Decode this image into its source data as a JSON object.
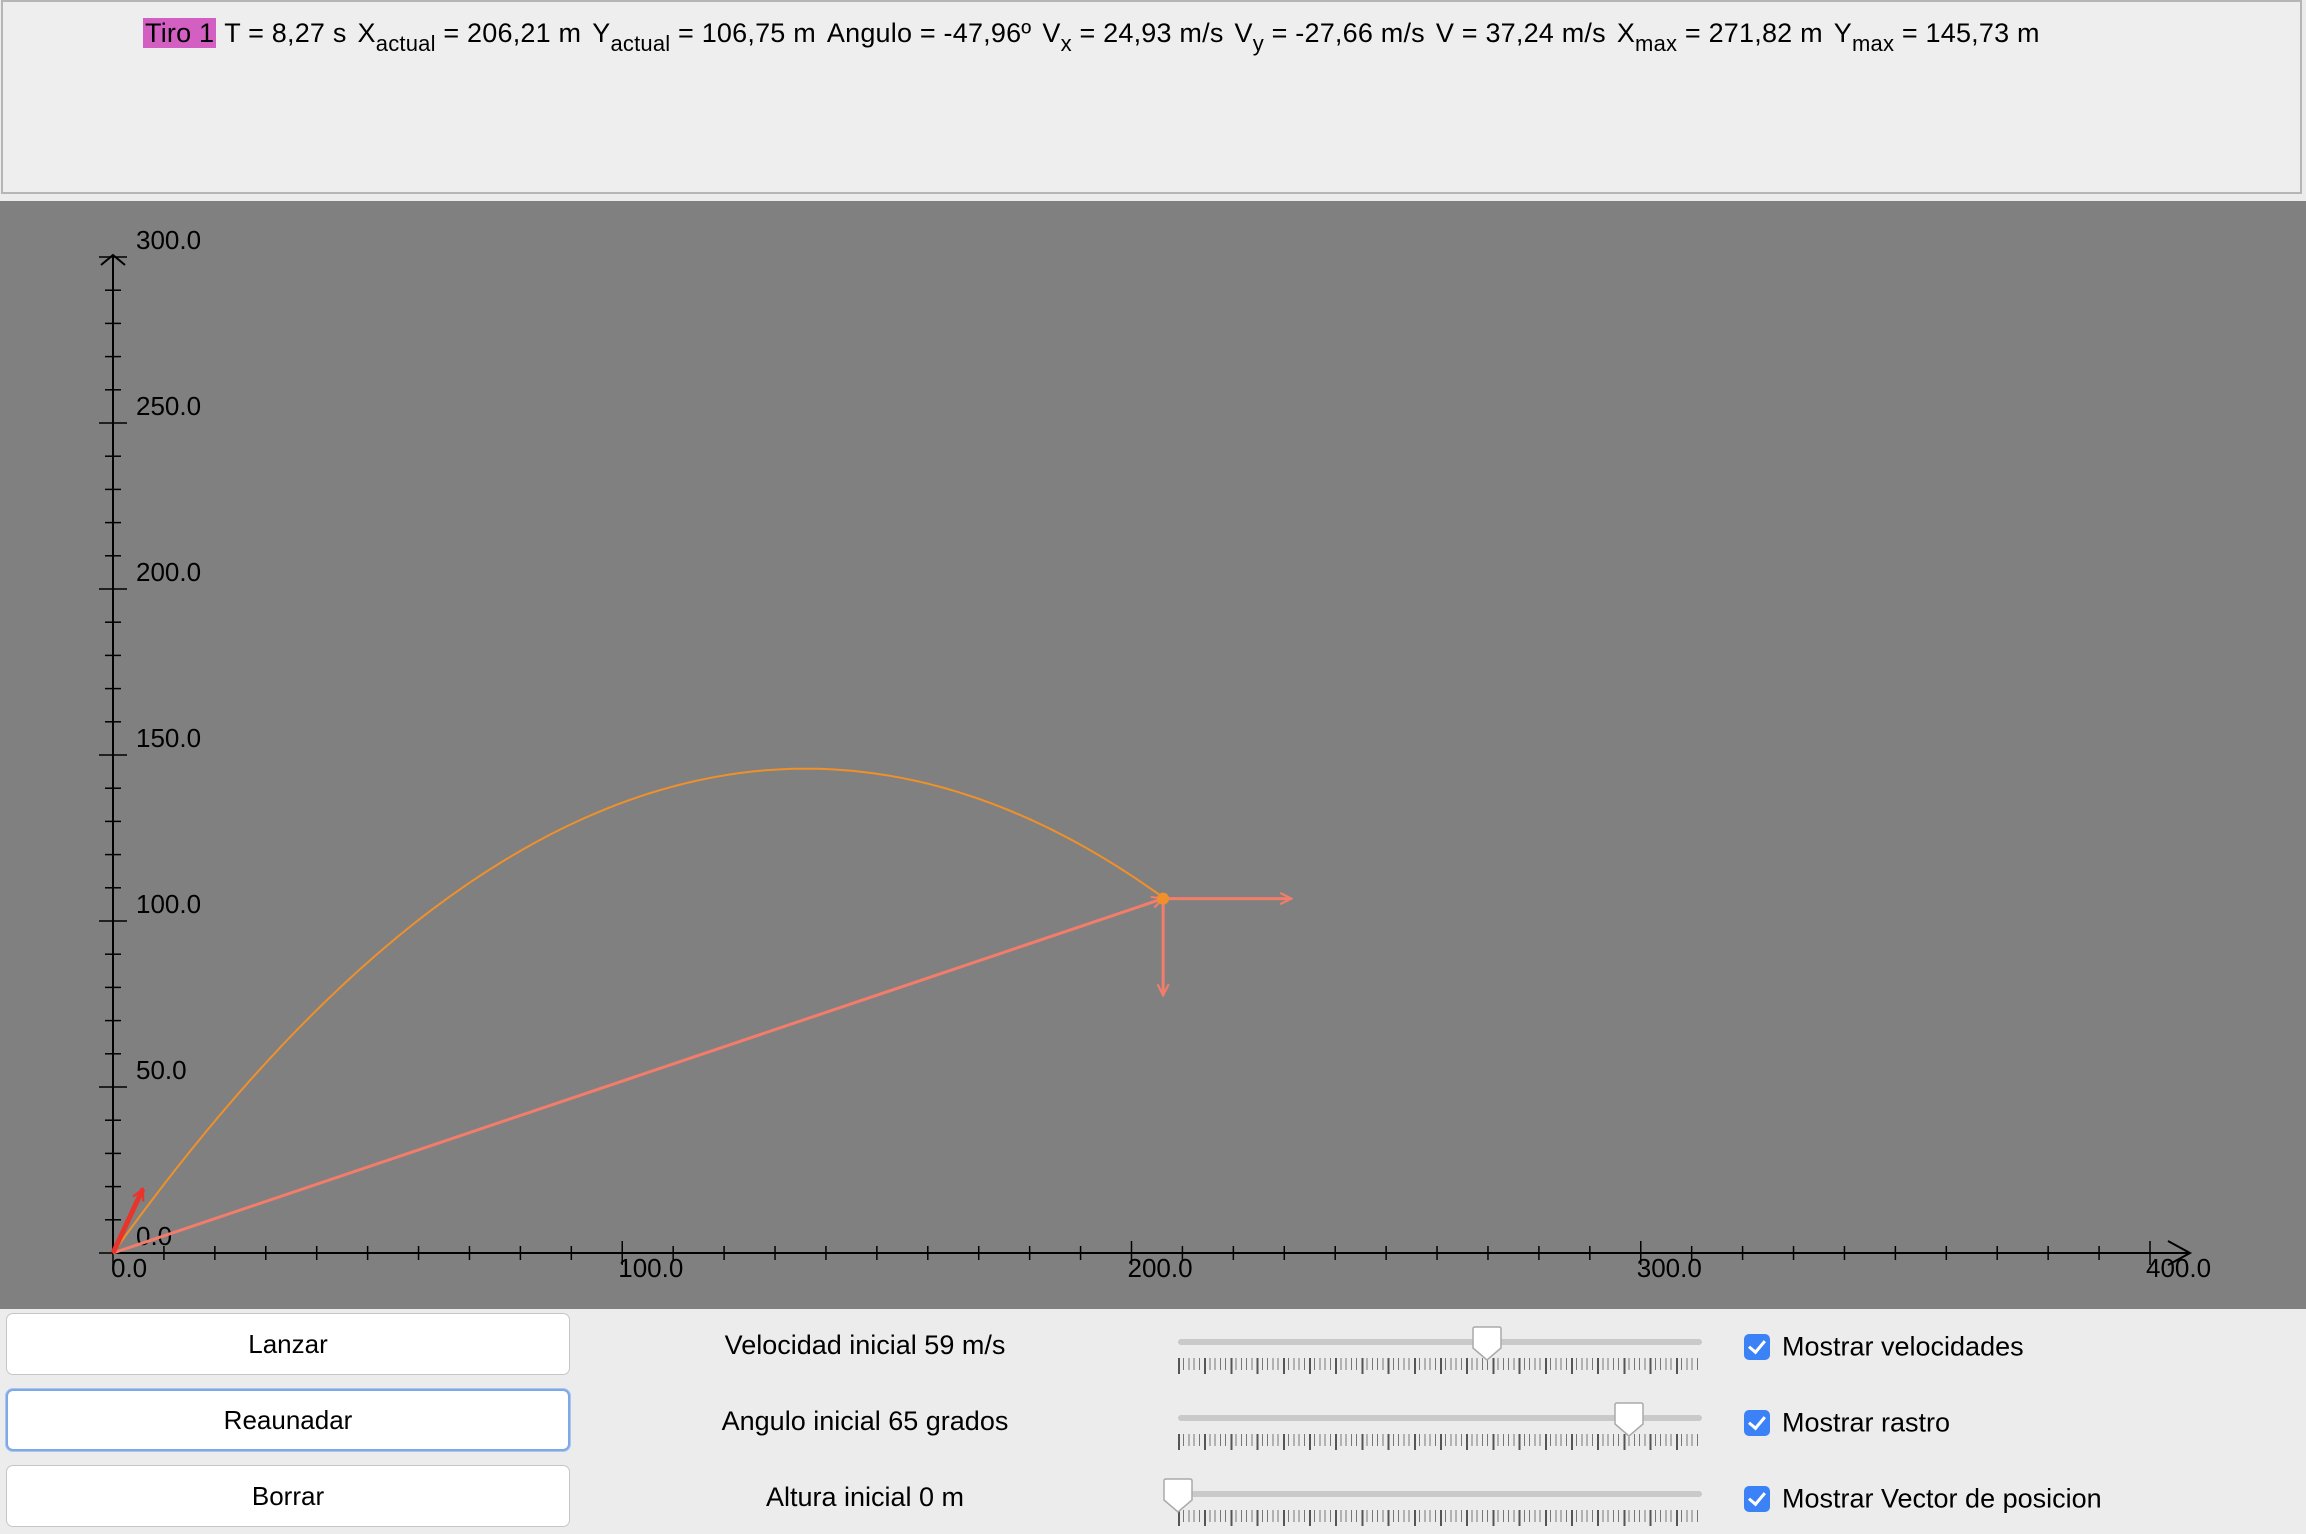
{
  "info": {
    "tag": "Tiro 1",
    "t": "T = 8,27 s",
    "xactual_sym": "X",
    "xactual_sub": "actual",
    "xactual_val": "= 206,21 m",
    "yactual_sym": "Y",
    "yactual_sub": "actual",
    "yactual_val": "= 106,75 m",
    "angulo": "Angulo = -47,96º",
    "vx_sym": "V",
    "vx_sub": "x",
    "vx_val": "= 24,93 m/s",
    "vy_sym": "V",
    "vy_sub": "y",
    "vy_val": "= -27,66 m/s",
    "v": "V = 37,24 m/s",
    "xmax_sym": "X",
    "xmax_sub": "max",
    "xmax_val": "= 271,82 m",
    "ymax_sym": "Y",
    "ymax_sub": "max",
    "ymax_val": "= 145,73 m"
  },
  "plot": {
    "xlim": [
      0,
      400
    ],
    "ylim": [
      0,
      300
    ],
    "x_ticks": [
      "0.0",
      "100.0",
      "200.0",
      "300.0",
      "400.0"
    ],
    "y_ticks": [
      "0.0",
      "50.0",
      "100.0",
      "150.0",
      "200.0",
      "250.0",
      "300.0"
    ],
    "background": "#808080",
    "trail_color": "#f0902a",
    "vector_color": "#f47c6a",
    "initial_velocity_color": "#e8342a",
    "trajectory": {
      "v0": 59,
      "angle_deg": 65,
      "h0": 0,
      "t_end": 8.27
    },
    "position": {
      "x": 206.21,
      "y": 106.75
    },
    "velocity": {
      "vx": 24.93,
      "vy": -27.66
    }
  },
  "buttons": {
    "launch": "Lanzar",
    "resume": "Reaunadar",
    "clear": "Borrar"
  },
  "params": {
    "velocity_label": "Velocidad inicial 59 m/s",
    "angle_label": "Angulo inicial 65 grados",
    "height_label": "Altura inicial 0 m",
    "velocity_fraction": 0.59,
    "angle_fraction": 0.86,
    "height_fraction": 0.0
  },
  "checks": {
    "show_velocities": "Mostrar velocidades",
    "show_trail": "Mostrar rastro",
    "show_position": "Mostrar Vector de posicion"
  }
}
